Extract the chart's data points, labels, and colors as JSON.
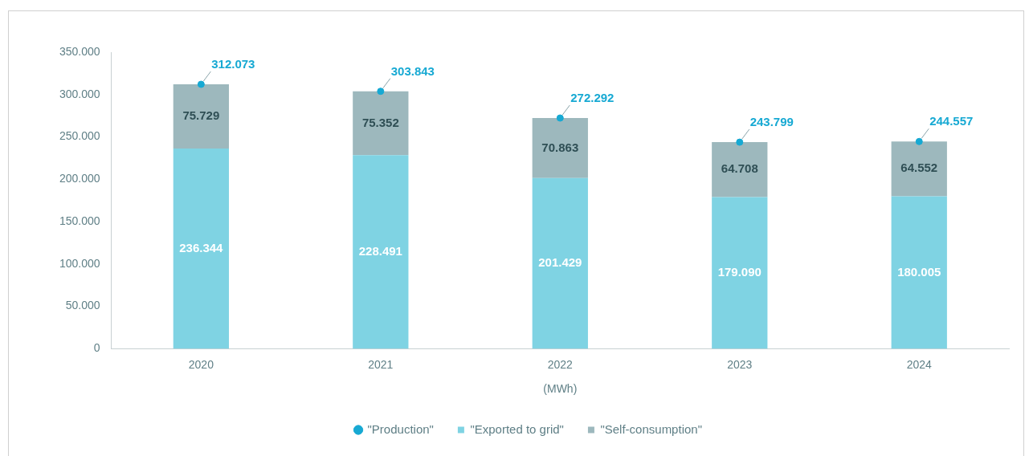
{
  "chart_data": {
    "type": "bar",
    "stacked": true,
    "xlabel": "(MWh)",
    "categories": [
      "2020",
      "2021",
      "2022",
      "2023",
      "2024"
    ],
    "series": [
      {
        "name": "\"Exported to grid\"",
        "color": "#7fd3e3",
        "values": [
          236344,
          228491,
          201429,
          179090,
          180005
        ],
        "value_labels": [
          "236.344",
          "228.491",
          "201.429",
          "179.090",
          "180.005"
        ]
      },
      {
        "name": "\"Self-consumption\"",
        "color": "#9db8bd",
        "values": [
          75729,
          75352,
          70863,
          64708,
          64552
        ],
        "value_labels": [
          "75.729",
          "75.352",
          "70.863",
          "64.708",
          "64.552"
        ]
      },
      {
        "name": "\"Production\"",
        "type": "scatter",
        "color": "#17a9d3",
        "values": [
          312073,
          303843,
          272292,
          243799,
          244557
        ],
        "value_labels": [
          "312.073",
          "303.843",
          "272.292",
          "243.799",
          "244.557"
        ]
      }
    ],
    "ylim": [
      0,
      350000
    ],
    "yticks": [
      {
        "value": 0,
        "label": "0"
      },
      {
        "value": 50000,
        "label": "50.000"
      },
      {
        "value": 100000,
        "label": "100.000"
      },
      {
        "value": 150000,
        "label": "150.000"
      },
      {
        "value": 200000,
        "label": "200.000"
      },
      {
        "value": 250000,
        "label": "250.000"
      },
      {
        "value": 300000,
        "label": "300.000"
      },
      {
        "value": 350000,
        "label": "350.000"
      }
    ],
    "grid": false,
    "legend": "bottom",
    "marker": "circle"
  }
}
